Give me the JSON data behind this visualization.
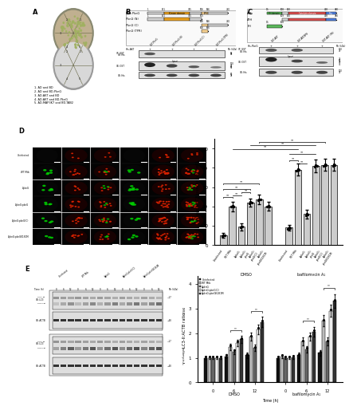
{
  "panel_D_bar": {
    "values_dmso": [
      5.0,
      20.0,
      9.5,
      22.0,
      23.5,
      20.0
    ],
    "errors_dmso": [
      1.2,
      2.5,
      1.8,
      2.2,
      2.5,
      2.2
    ],
    "values_baf": [
      9.0,
      39.0,
      16.0,
      41.0,
      41.5,
      41.5
    ],
    "errors_baf": [
      1.5,
      3.2,
      2.2,
      3.2,
      3.2,
      3.2
    ],
    "bar_color": "#cccccc",
    "ylabel": "Average LC3 puncta per cell",
    "ylim": [
      0,
      55
    ],
    "yticks": [
      0,
      10,
      20,
      30,
      40,
      50
    ]
  },
  "panel_E_bar": {
    "groups": [
      "Uninfected",
      "WT Mtb",
      "ΔpknG",
      "ΔpknG:pknG(C)",
      "ΔpknG:pknGK181M"
    ],
    "colors": [
      "#111111",
      "#bbbbbb",
      "#666666",
      "#eeeeee",
      "#333333"
    ],
    "values_dmso_t0": [
      1.0,
      1.0,
      1.0,
      1.0,
      1.0
    ],
    "values_dmso_t6": [
      1.05,
      1.45,
      1.25,
      1.6,
      1.75
    ],
    "values_dmso_t12": [
      1.1,
      1.85,
      1.4,
      2.15,
      2.45
    ],
    "errors_dmso_t0": [
      0.05,
      0.05,
      0.05,
      0.05,
      0.05
    ],
    "errors_dmso_t6": [
      0.08,
      0.13,
      0.1,
      0.14,
      0.15
    ],
    "errors_dmso_t12": [
      0.1,
      0.16,
      0.12,
      0.19,
      0.22
    ],
    "values_baf_t0": [
      1.0,
      1.05,
      1.0,
      1.0,
      1.02
    ],
    "values_baf_t6": [
      1.1,
      1.65,
      1.35,
      1.85,
      2.05
    ],
    "values_baf_t12": [
      1.2,
      2.5,
      1.65,
      2.9,
      3.3
    ],
    "errors_baf_t0": [
      0.05,
      0.07,
      0.05,
      0.05,
      0.07
    ],
    "errors_baf_t6": [
      0.1,
      0.16,
      0.13,
      0.17,
      0.19
    ],
    "errors_baf_t12": [
      0.12,
      0.22,
      0.16,
      0.24,
      0.27
    ],
    "ylabel": "LC3-II:ACTB ratio",
    "ylim": [
      0,
      4.3
    ],
    "yticks": [
      0,
      1,
      2,
      3,
      4
    ]
  },
  "background_color": "#ffffff"
}
